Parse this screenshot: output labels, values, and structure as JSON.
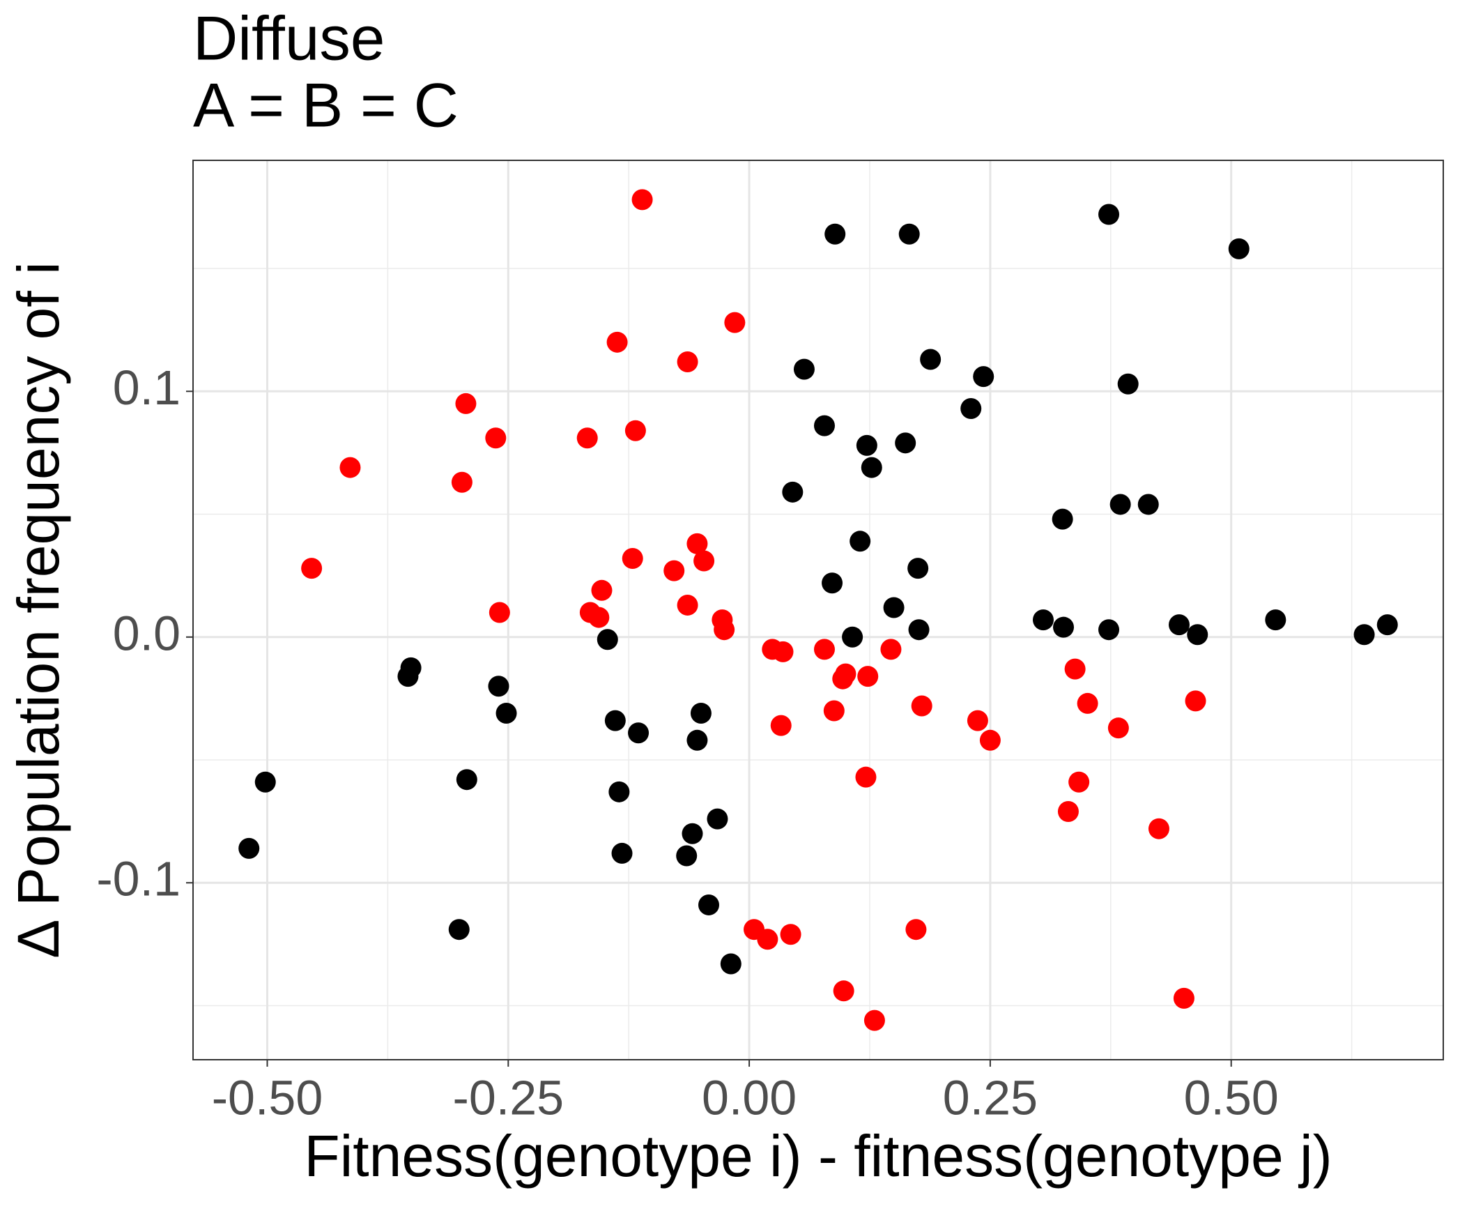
{
  "chart_data": {
    "type": "scatter",
    "title": "Diffuse",
    "subtitle": "A = B = C",
    "x_label": "Fitness(genotype i) - fitness(genotype j)",
    "y_label": "Δ Population frequency of i",
    "xlim": [
      -0.577,
      0.72
    ],
    "ylim": [
      -0.172,
      0.194
    ],
    "xticks": [
      {
        "value": -0.5,
        "label": "-0.50"
      },
      {
        "value": -0.25,
        "label": "-0.25"
      },
      {
        "value": 0,
        "label": "0.00"
      },
      {
        "value": 0.25,
        "label": "0.25"
      },
      {
        "value": 0.5,
        "label": "0.50"
      }
    ],
    "yticks": [
      {
        "value": -0.1,
        "label": "-0.1"
      },
      {
        "value": 0,
        "label": "0.0"
      },
      0.1
    ],
    "xminorticks": [
      -0.375,
      -0.125,
      0.125,
      0.375,
      0.625
    ],
    "yminorticks": [
      -0.15,
      -0.05,
      0.05,
      0.15
    ],
    "grid": true,
    "series": [
      {
        "color": "#000000",
        "x": [
          0.089,
          0.166,
          0.373,
          0.508,
          0.188,
          0.057,
          0.243,
          0.393,
          0.23,
          0.078,
          0.122,
          0.162,
          0.127,
          0.045,
          0.325,
          0.385,
          0.414,
          0.115,
          0.175,
          0.086,
          0.15,
          0.305,
          0.326,
          0.373,
          0.176,
          0.107,
          0.446,
          0.465,
          0.546,
          0.638,
          0.662,
          -0.147,
          -0.351,
          -0.354,
          -0.26,
          -0.252,
          -0.139,
          -0.115,
          -0.05,
          -0.054,
          -0.502,
          -0.293,
          -0.135,
          -0.033,
          -0.059,
          -0.519,
          -0.132,
          -0.065,
          -0.042,
          -0.301,
          -0.019
        ],
        "values": [
          0.164,
          0.164,
          0.172,
          0.158,
          0.113,
          0.109,
          0.106,
          0.103,
          0.093,
          0.086,
          0.078,
          0.079,
          0.069,
          0.059,
          0.048,
          0.054,
          0.054,
          0.039,
          0.028,
          0.022,
          0.012,
          0.007,
          0.004,
          0.003,
          0.003,
          0.0,
          0.005,
          0.001,
          0.007,
          0.001,
          0.005,
          -0.001,
          -0.0125,
          -0.016,
          -0.02,
          -0.031,
          -0.034,
          -0.039,
          -0.031,
          -0.042,
          -0.059,
          -0.058,
          -0.063,
          -0.074,
          -0.08,
          -0.086,
          -0.088,
          -0.089,
          -0.109,
          -0.119,
          -0.133
        ]
      },
      {
        "color": "#ff0000",
        "x": [
          -0.111,
          -0.015,
          -0.137,
          -0.064,
          -0.294,
          -0.118,
          -0.263,
          -0.168,
          -0.414,
          -0.298,
          -0.454,
          -0.121,
          -0.054,
          -0.047,
          -0.078,
          -0.153,
          -0.259,
          -0.165,
          -0.156,
          -0.064,
          -0.028,
          -0.026,
          0.024,
          0.035,
          0.078,
          0.147,
          0.1,
          0.097,
          0.123,
          0.338,
          0.351,
          0.463,
          0.383,
          0.179,
          0.088,
          0.033,
          0.237,
          0.25,
          0.121,
          0.342,
          0.331,
          0.425,
          0.005,
          0.019,
          0.043,
          0.173,
          0.098,
          0.451,
          0.13
        ],
        "values": [
          0.178,
          0.128,
          0.12,
          0.112,
          0.095,
          0.084,
          0.081,
          0.081,
          0.069,
          0.063,
          0.028,
          0.032,
          0.038,
          0.031,
          0.027,
          0.019,
          0.01,
          0.01,
          0.008,
          0.013,
          0.007,
          0.003,
          -0.005,
          -0.006,
          -0.005,
          -0.005,
          -0.015,
          -0.017,
          -0.016,
          -0.013,
          -0.027,
          -0.026,
          -0.037,
          -0.028,
          -0.03,
          -0.036,
          -0.034,
          -0.042,
          -0.057,
          -0.059,
          -0.071,
          -0.078,
          -0.119,
          -0.123,
          -0.121,
          -0.119,
          -0.144,
          -0.147,
          -0.156
        ]
      }
    ]
  }
}
